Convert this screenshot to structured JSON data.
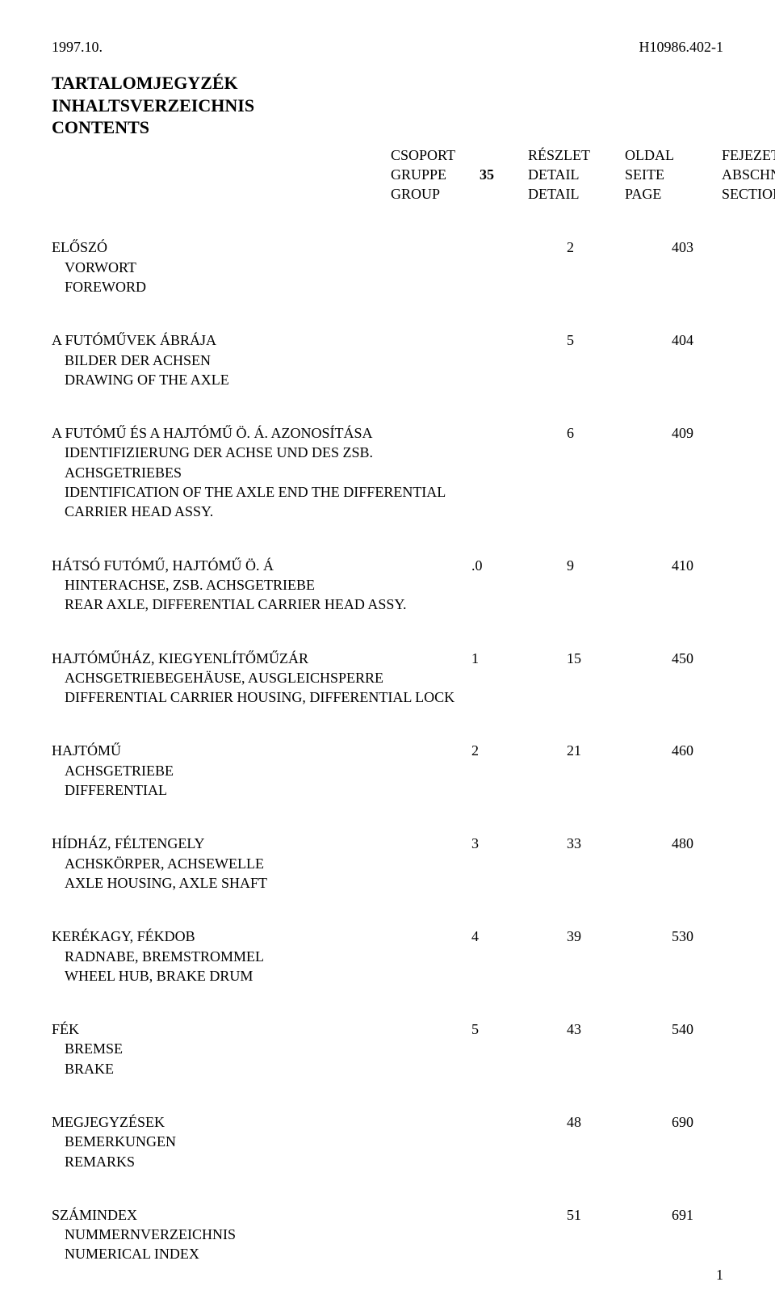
{
  "top": {
    "left": "1997.10.",
    "right": "H10986.402-1"
  },
  "title": {
    "line1_hu": "TARTALOMJEGYZÉK",
    "line2_de": "INHALTSVERZEICHNIS",
    "line3_en": "CONTENTS"
  },
  "header": {
    "group_number": "35",
    "row1": {
      "c1": "CSOPORT",
      "c3": "RÉSZLET",
      "c4": "OLDAL",
      "c5": "FEJEZET"
    },
    "row2": {
      "c1": "GRUPPE",
      "c3": "DETAIL",
      "c4": "SEITE",
      "c5": "ABSCHNITT"
    },
    "row3": {
      "c1": "GROUP",
      "c3": "DETAIL",
      "c4": "PAGE",
      "c5": "SECTION"
    }
  },
  "entries": [
    {
      "hu": "ELŐSZÓ",
      "de1": "VORWORT",
      "en": "FOREWORD",
      "detail": "",
      "page": "2",
      "section": "403"
    },
    {
      "hu": "A FUTÓMŰVEK ÁBRÁJA",
      "de1": "BILDER DER ACHSEN",
      "en": "DRAWING OF THE AXLE",
      "detail": "",
      "page": "5",
      "section": "404"
    },
    {
      "hu": "A FUTÓMŰ ÉS A HAJTÓMŰ Ö. Á. AZONOSÍTÁSA",
      "de1": "IDENTIFIZIERUNG DER  ACHSE UND DES ZSB.",
      "de2": "ACHSGETRIEBES",
      "en": "IDENTIFICATION OF THE AXLE END THE DIFFERENTIAL",
      "en2": "CARRIER HEAD ASSY.",
      "detail": "",
      "page": "6",
      "section": "409"
    },
    {
      "hu": "HÁTSÓ FUTÓMŰ, HAJTÓMŰ Ö. Á",
      "de1": "HINTERACHSE, ZSB. ACHSGETRIEBE",
      "en": "REAR AXLE, DIFFERENTIAL CARRIER HEAD ASSY.",
      "detail": ".0",
      "page": "9",
      "section": "410"
    },
    {
      "hu": "HAJTÓMŰHÁZ, KIEGYENLÍTŐMŰZÁR",
      "de1": "ACHSGETRIEBEGEHÄUSE, AUSGLEICHSPERRE",
      "en": "DIFFERENTIAL CARRIER HOUSING, DIFFERENTIAL LOCK",
      "detail": "1",
      "page": "15",
      "section": "450"
    },
    {
      "hu": "HAJTÓMŰ",
      "de1": "ACHSGETRIEBE",
      "en": "DIFFERENTIAL",
      "detail": "2",
      "page": "21",
      "section": "460"
    },
    {
      "hu": "HÍDHÁZ, FÉLTENGELY",
      "de1": "ACHSKÖRPER, ACHSEWELLE",
      "en": "AXLE HOUSING, AXLE SHAFT",
      "detail": "3",
      "page": "33",
      "section": "480"
    },
    {
      "hu": "KERÉKAGY, FÉKDOB",
      "de1": "RADNABE, BREMSTROMMEL",
      "en": "WHEEL HUB, BRAKE DRUM",
      "detail": "4",
      "page": "39",
      "section": "530"
    },
    {
      "hu": "FÉK",
      "de1": "BREMSE",
      "en": "BRAKE",
      "detail": "5",
      "page": "43",
      "section": "540"
    },
    {
      "hu": "MEGJEGYZÉSEK",
      "de1": "BEMERKUNGEN",
      "en": "REMARKS",
      "detail": "",
      "page": "48",
      "section": "690"
    },
    {
      "hu": "SZÁMINDEX",
      "de1": "NUMMERNVERZEICHNIS",
      "en": "NUMERICAL INDEX",
      "detail": "",
      "page": "51",
      "section": "691"
    }
  ],
  "page_number": "1"
}
